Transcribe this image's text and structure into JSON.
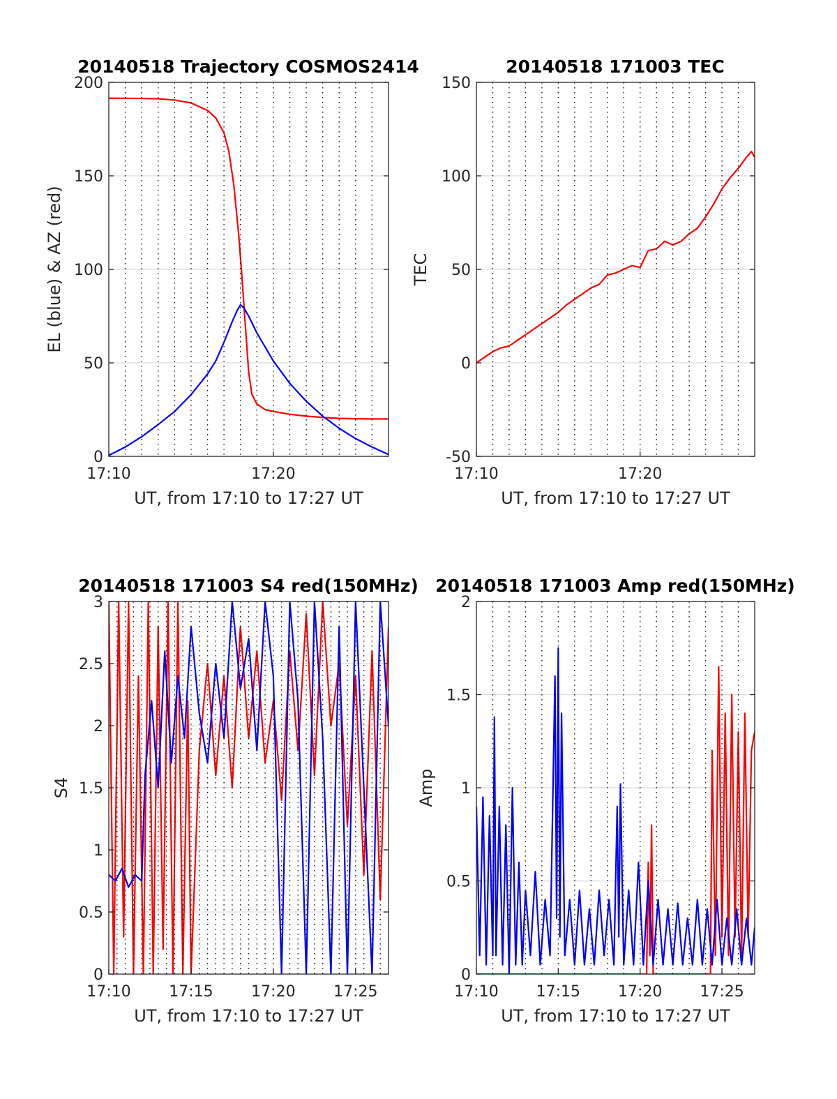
{
  "colors": {
    "red": "#ff0000",
    "blue": "#0000ff"
  },
  "chart_data": [
    {
      "id": "traj",
      "type": "line",
      "title": "20140518 Trajectory COSMOS2414",
      "xlabel": "UT, from 17:10 to 17:27 UT",
      "ylabel": "EL (blue) & AZ (red)",
      "xlim": [
        0,
        17
      ],
      "ylim": [
        0,
        200
      ],
      "yticks": [
        0,
        50,
        100,
        150,
        200
      ],
      "xticks": [
        {
          "v": 0,
          "label": "17:10"
        },
        {
          "v": 10,
          "label": "17:20"
        }
      ],
      "vgrid": [
        1,
        2,
        3,
        4,
        5,
        6,
        7,
        8,
        9,
        10,
        11,
        12,
        13,
        14,
        15,
        16
      ],
      "series": [
        {
          "color": "red",
          "x": [
            0,
            2,
            3,
            4,
            5,
            6,
            6.5,
            7,
            7.3,
            7.6,
            7.9,
            8.1,
            8.3,
            8.5,
            8.7,
            9,
            9.5,
            10,
            11,
            12,
            13,
            14,
            15,
            16,
            17
          ],
          "values": [
            191.5,
            191.4,
            191.2,
            190.5,
            189,
            185,
            181,
            173,
            163,
            145,
            118,
            95,
            70,
            45,
            33,
            28,
            25,
            24,
            22.5,
            21.5,
            20.8,
            20.3,
            20.1,
            20,
            20
          ]
        },
        {
          "color": "blue",
          "x": [
            0,
            1,
            2,
            3,
            4,
            5,
            6,
            6.5,
            7,
            7.5,
            7.8,
            8.0,
            8.2,
            8.5,
            9,
            10,
            11,
            12,
            13,
            14,
            15,
            16,
            17
          ],
          "values": [
            0.5,
            5,
            10.5,
            17,
            24,
            33,
            44,
            51,
            61,
            72,
            78,
            81,
            79.5,
            75,
            66,
            51,
            39,
            29.5,
            21.5,
            15,
            9.5,
            5,
            1
          ]
        }
      ]
    },
    {
      "id": "tec",
      "type": "line",
      "title": "20140518 171003 TEC",
      "xlabel": "UT, from 17:10 to 17:27 UT",
      "ylabel": "TEC",
      "xlim": [
        0,
        17
      ],
      "ylim": [
        -50,
        150
      ],
      "yticks": [
        -50,
        0,
        50,
        100,
        150
      ],
      "xticks": [
        {
          "v": 0,
          "label": "17:10"
        },
        {
          "v": 10,
          "label": "17:20"
        }
      ],
      "vgrid": [
        1,
        2,
        3,
        4,
        5,
        6,
        7,
        8,
        9,
        10,
        11,
        12,
        13,
        14,
        15,
        16
      ],
      "series": [
        {
          "color": "red",
          "x": [
            0,
            0.5,
            1,
            1.5,
            2,
            2.5,
            3,
            3.5,
            4,
            4.5,
            5,
            5.5,
            6,
            6.5,
            7,
            7.5,
            8,
            8.5,
            9,
            9.5,
            10,
            10.5,
            11,
            11.5,
            12,
            12.5,
            13,
            13.5,
            14,
            14.5,
            15,
            15.5,
            16,
            16.5,
            16.8,
            17
          ],
          "values": [
            0,
            3,
            6,
            8,
            9,
            12,
            15,
            18,
            21,
            24,
            27,
            31,
            34,
            37,
            40,
            42,
            47,
            48,
            50,
            52,
            51,
            60,
            61,
            65,
            63,
            65,
            69,
            72,
            78,
            85,
            93,
            99,
            104,
            110,
            113,
            110
          ]
        }
      ]
    },
    {
      "id": "s4",
      "type": "line",
      "title": "20140518 171003 S4 red(150MHz)",
      "xlabel": "UT, from 17:10 to 17:27 UT",
      "ylabel": "S4",
      "xlim": [
        0,
        17
      ],
      "ylim": [
        0,
        3
      ],
      "yticks": [
        0,
        0.5,
        1,
        1.5,
        2,
        2.5,
        3
      ],
      "xticks": [
        {
          "v": 0,
          "label": "17:10"
        },
        {
          "v": 5,
          "label": "17:15"
        },
        {
          "v": 10,
          "label": "17:20"
        },
        {
          "v": 15,
          "label": "17:25"
        }
      ],
      "vgrid": [
        0.5,
        1,
        1.5,
        2,
        2.5,
        3,
        3.5,
        4,
        4.5,
        5,
        5.5,
        6,
        6.5,
        7,
        7.5,
        8,
        8.5,
        9,
        9.5,
        10,
        10.5,
        11,
        11.5,
        12,
        12.5,
        13,
        13.5,
        14,
        14.5,
        15,
        15.5,
        16,
        16.5
      ],
      "series": [
        {
          "color": "red",
          "name": "150MHz",
          "x": [
            0.0,
            0.3,
            0.6,
            0.9,
            1.2,
            1.5,
            1.8,
            2.1,
            2.4,
            2.7,
            3.0,
            3.3,
            3.6,
            3.9,
            4.2,
            4.5,
            4.8,
            5.0,
            5.5,
            6.0,
            6.5,
            7.0,
            7.5,
            8.0,
            8.5,
            9.0,
            9.5,
            10.0,
            10.5,
            11.0,
            11.5,
            12.0,
            12.5,
            13.0,
            13.5,
            14.0,
            14.5,
            15.0,
            15.5,
            16.0,
            16.5,
            17.0
          ],
          "values": [
            3.0,
            0.0,
            3.0,
            0.3,
            3.0,
            0.0,
            2.4,
            0.0,
            3.0,
            0.0,
            2.8,
            0.2,
            3.0,
            0.0,
            3.0,
            0.0,
            2.2,
            0.0,
            1.8,
            2.5,
            1.6,
            2.4,
            1.5,
            2.8,
            1.9,
            2.6,
            1.7,
            2.2,
            1.4,
            2.6,
            1.8,
            2.9,
            1.6,
            3.0,
            2.0,
            2.5,
            1.2,
            2.4,
            0.8,
            2.6,
            0.6,
            2.8
          ]
        },
        {
          "color": "blue",
          "name": "",
          "x": [
            0.0,
            0.4,
            0.8,
            1.2,
            1.6,
            2.0,
            2.2,
            2.6,
            3.0,
            3.4,
            3.8,
            4.2,
            4.6,
            5.0,
            5.5,
            6.0,
            6.5,
            7.0,
            7.5,
            8.0,
            8.5,
            9.0,
            9.5,
            10.0,
            10.5,
            11.0,
            11.5,
            12.0,
            12.5,
            13.0,
            13.5,
            14.0,
            14.5,
            15.0,
            15.5,
            16.0,
            16.5,
            17.0
          ],
          "values": [
            0.8,
            0.75,
            0.85,
            0.7,
            0.8,
            0.75,
            1.6,
            2.2,
            1.5,
            2.6,
            1.7,
            2.4,
            1.9,
            2.8,
            2.1,
            1.7,
            2.5,
            1.9,
            3.0,
            2.3,
            2.7,
            1.8,
            3.0,
            2.4,
            0.0,
            3.0,
            2.2,
            0.0,
            3.0,
            1.9,
            0.0,
            2.8,
            0.0,
            3.0,
            1.5,
            0.0,
            3.0,
            2.0
          ]
        }
      ]
    },
    {
      "id": "amp",
      "type": "line",
      "title": "20140518 171003 Amp red(150MHz)",
      "xlabel": "UT, from 17:10 to 17:27 UT",
      "ylabel": "Amp",
      "xlim": [
        0,
        17
      ],
      "ylim": [
        0,
        2
      ],
      "yticks": [
        0,
        0.5,
        1,
        1.5,
        2
      ],
      "xticks": [
        {
          "v": 0,
          "label": "17:10"
        },
        {
          "v": 5,
          "label": "17:15"
        },
        {
          "v": 10,
          "label": "17:20"
        },
        {
          "v": 15,
          "label": "17:25"
        }
      ],
      "vgrid": [
        1,
        2,
        3,
        4,
        5,
        6,
        7,
        8,
        9,
        10,
        11,
        12,
        13,
        14,
        15,
        16
      ],
      "series": [
        {
          "color": "red",
          "name": "150MHz",
          "x": [
            0.0,
            10.4,
            10.5,
            10.6,
            10.7,
            10.8,
            14.3,
            14.4,
            14.6,
            14.8,
            15.0,
            15.2,
            15.4,
            15.6,
            15.8,
            16.0,
            16.2,
            16.4,
            16.6,
            16.8,
            17.0
          ],
          "values": [
            0.0,
            0.0,
            0.6,
            0.1,
            0.8,
            0.0,
            0.0,
            1.2,
            0.1,
            1.65,
            0.2,
            1.4,
            0.1,
            1.5,
            0.2,
            1.3,
            0.1,
            1.4,
            0.2,
            1.2,
            1.3
          ]
        },
        {
          "color": "blue",
          "name": "",
          "x": [
            0.0,
            0.2,
            0.4,
            0.6,
            0.8,
            1.0,
            1.1,
            1.2,
            1.4,
            1.6,
            1.8,
            2.0,
            2.2,
            2.4,
            2.6,
            2.8,
            3.0,
            3.3,
            3.6,
            3.9,
            4.2,
            4.5,
            4.8,
            4.9,
            5.0,
            5.1,
            5.2,
            5.4,
            5.7,
            6.0,
            6.3,
            6.6,
            6.9,
            7.2,
            7.5,
            7.8,
            8.1,
            8.4,
            8.6,
            8.7,
            8.8,
            9.0,
            9.3,
            9.6,
            9.9,
            10.2,
            10.5,
            10.8,
            11.1,
            11.4,
            11.7,
            12.0,
            12.3,
            12.6,
            12.9,
            13.2,
            13.5,
            13.8,
            14.1,
            14.4,
            14.7,
            15.0,
            15.3,
            15.6,
            15.9,
            16.2,
            16.5,
            16.8,
            17.0
          ],
          "values": [
            0.9,
            0.1,
            0.95,
            0.05,
            0.85,
            0.1,
            1.38,
            0.1,
            0.9,
            0.05,
            0.8,
            0.0,
            1.0,
            0.05,
            0.6,
            0.05,
            0.45,
            0.1,
            0.55,
            0.05,
            0.4,
            0.1,
            1.6,
            0.3,
            1.75,
            0.2,
            1.4,
            0.1,
            0.4,
            0.05,
            0.45,
            0.05,
            0.35,
            0.05,
            0.45,
            0.1,
            0.4,
            0.05,
            0.9,
            0.2,
            1.02,
            0.05,
            0.45,
            0.05,
            0.6,
            0.05,
            0.5,
            0.05,
            0.4,
            0.05,
            0.35,
            0.05,
            0.38,
            0.05,
            0.3,
            0.05,
            0.4,
            0.05,
            0.35,
            0.05,
            0.4,
            0.05,
            0.3,
            0.05,
            0.35,
            0.05,
            0.3,
            0.05,
            0.25
          ]
        }
      ]
    }
  ]
}
